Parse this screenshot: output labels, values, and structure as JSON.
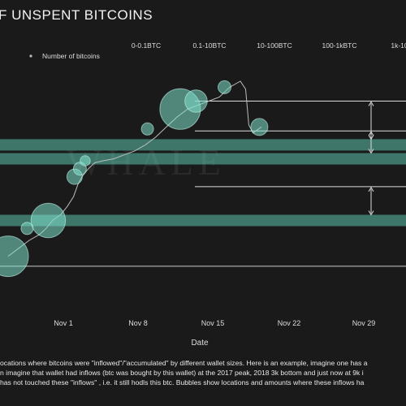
{
  "title": "F UNSPENT BITCOINS",
  "legend": {
    "label": "Number of bitcoins"
  },
  "size_bins": [
    "0-0.1BTC",
    "0.1-10BTC",
    "10-100BTC",
    "100-1kBTC",
    "1k-10"
  ],
  "watermark": "WHALE",
  "colors": {
    "bubble": "#7fe0cc",
    "band": "#5cc4ac",
    "line": "#bbbbbb",
    "background": "#1a1a1a"
  },
  "chart_data": {
    "type": "scatter",
    "xlabel": "Date",
    "ylabel": "",
    "x_ticks": [
      "Nov 1",
      "Nov 8",
      "Nov 15",
      "Nov 22",
      "Nov 29"
    ],
    "grid": false,
    "legend_placement": "top-left",
    "price_line": [
      [
        0.0,
        0.12
      ],
      [
        1.0,
        0.16
      ],
      [
        2.0,
        0.2
      ],
      [
        3.0,
        0.23
      ],
      [
        3.6,
        0.26
      ],
      [
        4.2,
        0.3
      ],
      [
        5.0,
        0.33
      ],
      [
        5.6,
        0.37
      ],
      [
        6.2,
        0.42
      ],
      [
        6.6,
        0.48
      ],
      [
        7.0,
        0.52
      ],
      [
        7.6,
        0.56
      ],
      [
        8.2,
        0.59
      ],
      [
        9.0,
        0.6
      ],
      [
        10.0,
        0.61
      ],
      [
        11.0,
        0.63
      ],
      [
        12.0,
        0.65
      ],
      [
        13.0,
        0.68
      ],
      [
        14.0,
        0.72
      ],
      [
        15.0,
        0.77
      ],
      [
        16.0,
        0.82
      ],
      [
        17.0,
        0.86
      ],
      [
        18.0,
        0.88
      ],
      [
        19.0,
        0.9
      ],
      [
        20.0,
        0.92
      ],
      [
        21.0,
        0.97
      ],
      [
        22.0,
        1.0
      ],
      [
        22.5,
        0.96
      ],
      [
        22.8,
        0.78
      ],
      [
        23.2,
        0.74
      ],
      [
        24.0,
        0.77
      ]
    ],
    "bubbles": [
      {
        "x": 0.0,
        "y": 0.12,
        "size": 1.0
      },
      {
        "x": 3.8,
        "y": 0.3,
        "size": 0.85
      },
      {
        "x": 1.8,
        "y": 0.26,
        "size": 0.3
      },
      {
        "x": 6.3,
        "y": 0.52,
        "size": 0.38
      },
      {
        "x": 6.8,
        "y": 0.56,
        "size": 0.32
      },
      {
        "x": 7.3,
        "y": 0.6,
        "size": 0.25
      },
      {
        "x": 13.2,
        "y": 0.76,
        "size": 0.3
      },
      {
        "x": 16.3,
        "y": 0.86,
        "size": 1.0
      },
      {
        "x": 17.8,
        "y": 0.9,
        "size": 0.55
      },
      {
        "x": 20.5,
        "y": 0.97,
        "size": 0.32
      },
      {
        "x": 23.8,
        "y": 0.77,
        "size": 0.42
      }
    ],
    "level_bands": [
      {
        "y": 0.68,
        "ref_y": 0.9
      },
      {
        "y": 0.61,
        "ref_y": 0.75
      },
      {
        "y": 0.3,
        "ref_y": 0.47
      }
    ]
  },
  "caption_lines": [
    "ocations where bitcoins were \"inflowed\"/\"accumulated\" by different wallet sizes. Here is an example, imagine one has a",
    "n imagine that wallet had inflows (btc was bought by this wallet) at the 2017 peak, 2018 3k bottom and just now at 9k i",
    "has not touched these \"inflows\" , i.e. it still hodls this btc. Bubbles show locations and amounts where these inflows ha"
  ]
}
